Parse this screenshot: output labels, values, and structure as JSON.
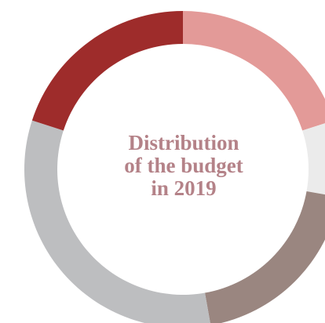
{
  "chart_data": {
    "type": "pie",
    "donut": true,
    "title": "",
    "center_label": [
      "Distribution",
      "of the budget",
      "in 2019"
    ],
    "legend": "none",
    "slices": [
      {
        "value": 20.0,
        "color": "#e39a98"
      },
      {
        "value": 7.8,
        "color": "#ebebeb"
      },
      {
        "value": 19.4,
        "color": "#9a8680"
      },
      {
        "value": 32.8,
        "color": "#bdbec0"
      },
      {
        "value": 20.0,
        "color": "#9e2c2b"
      }
    ]
  },
  "colors": {
    "center_label": "#b48288"
  }
}
